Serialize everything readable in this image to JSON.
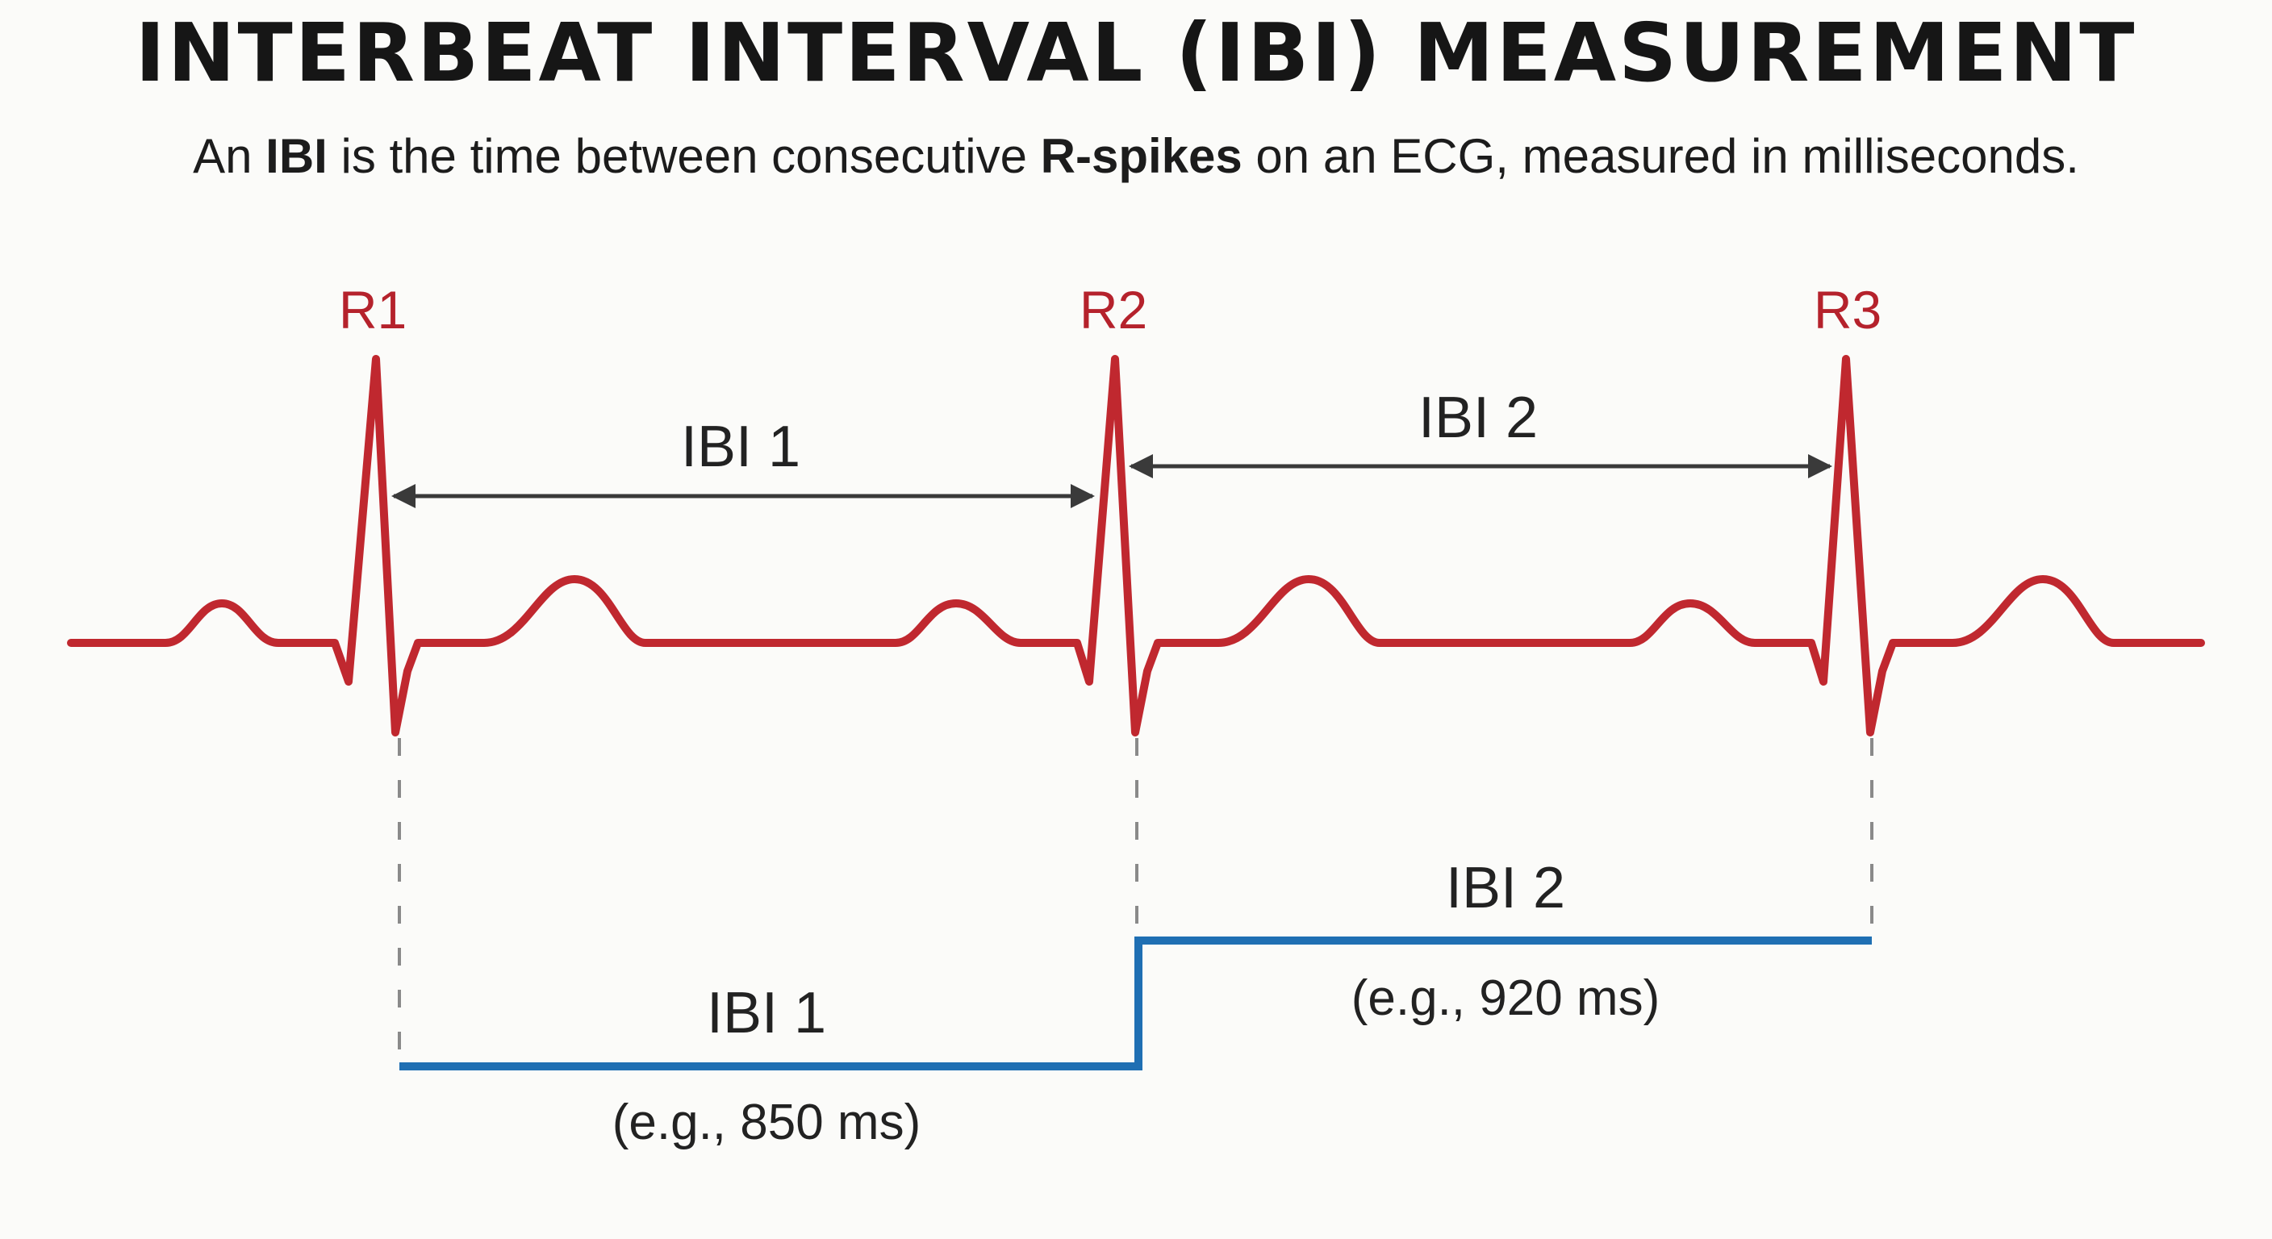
{
  "title": "INTERBEAT INTERVAL (IBI) MEASUREMENT",
  "subtitle": {
    "part1": "An ",
    "bold1": "IBI",
    "part2": " is the time between consecutive ",
    "bold2": "R-spikes",
    "part3": " on an ECG, measured in milliseconds."
  },
  "peaks": [
    {
      "label": "R1"
    },
    {
      "label": "R2"
    },
    {
      "label": "R3"
    }
  ],
  "upper_intervals": [
    {
      "label": "IBI 1"
    },
    {
      "label": "IBI 2"
    }
  ],
  "lower_intervals": [
    {
      "label": "IBI 1",
      "example": "(e.g., 850 ms)",
      "value_ms": 850
    },
    {
      "label": "IBI 2",
      "example": "(e.g., 920 ms)",
      "value_ms": 920
    }
  ],
  "colors": {
    "ecg_trace": "#c0282f",
    "peak_labels": "#b5222c",
    "interval_line": "#1f6fb3",
    "arrows": "#3a3a3a",
    "guides": "#8a8a8a"
  }
}
